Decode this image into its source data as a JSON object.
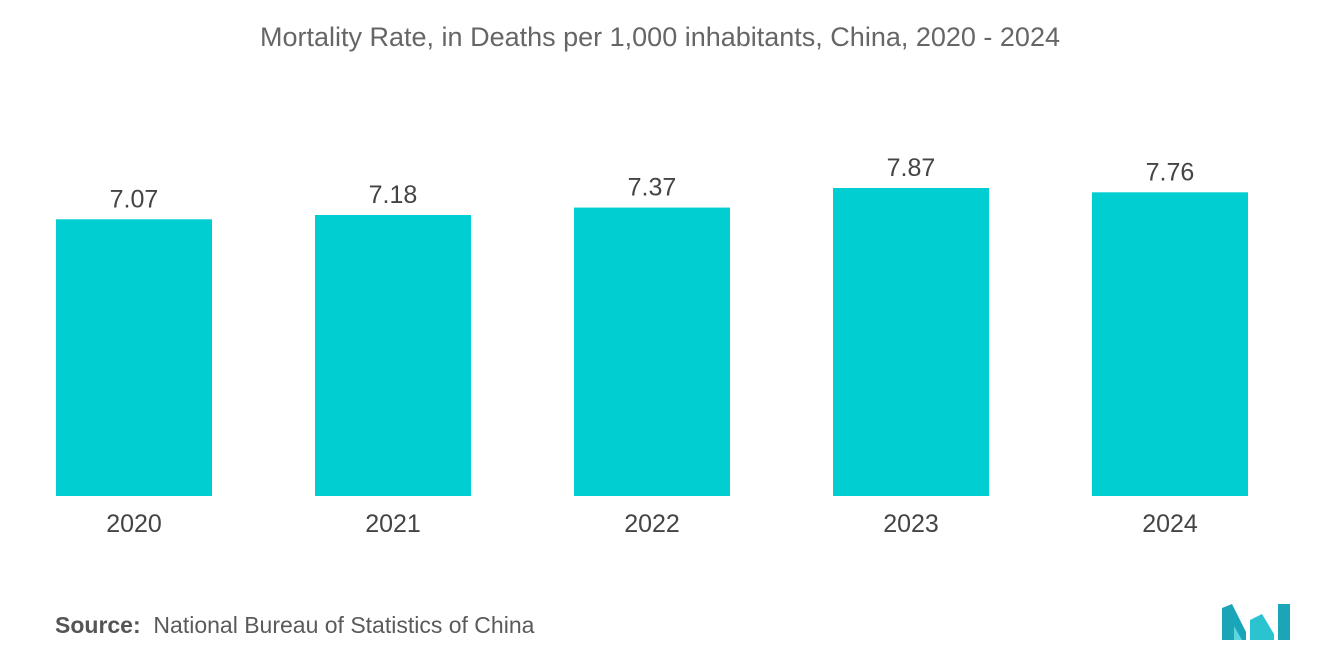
{
  "chart_data": {
    "type": "bar",
    "title": "Mortality Rate, in Deaths per 1,000 inhabitants, China, 2020 - 2024",
    "categories": [
      "2020",
      "2021",
      "2022",
      "2023",
      "2024"
    ],
    "values": [
      7.07,
      7.18,
      7.37,
      7.87,
      7.76
    ],
    "value_labels": [
      "7.07",
      "7.18",
      "7.37",
      "7.87",
      "7.76"
    ],
    "xlabel": "",
    "ylabel": "",
    "ylim": [
      0,
      7.87
    ],
    "grid": false,
    "legend": "none",
    "bar_color": "#00CED1"
  },
  "source": {
    "label": "Source:",
    "text": "National Bureau of Statistics of China"
  },
  "logo": {
    "icon": "mordor-intelligence-logo",
    "color": "#1aa5b8"
  }
}
